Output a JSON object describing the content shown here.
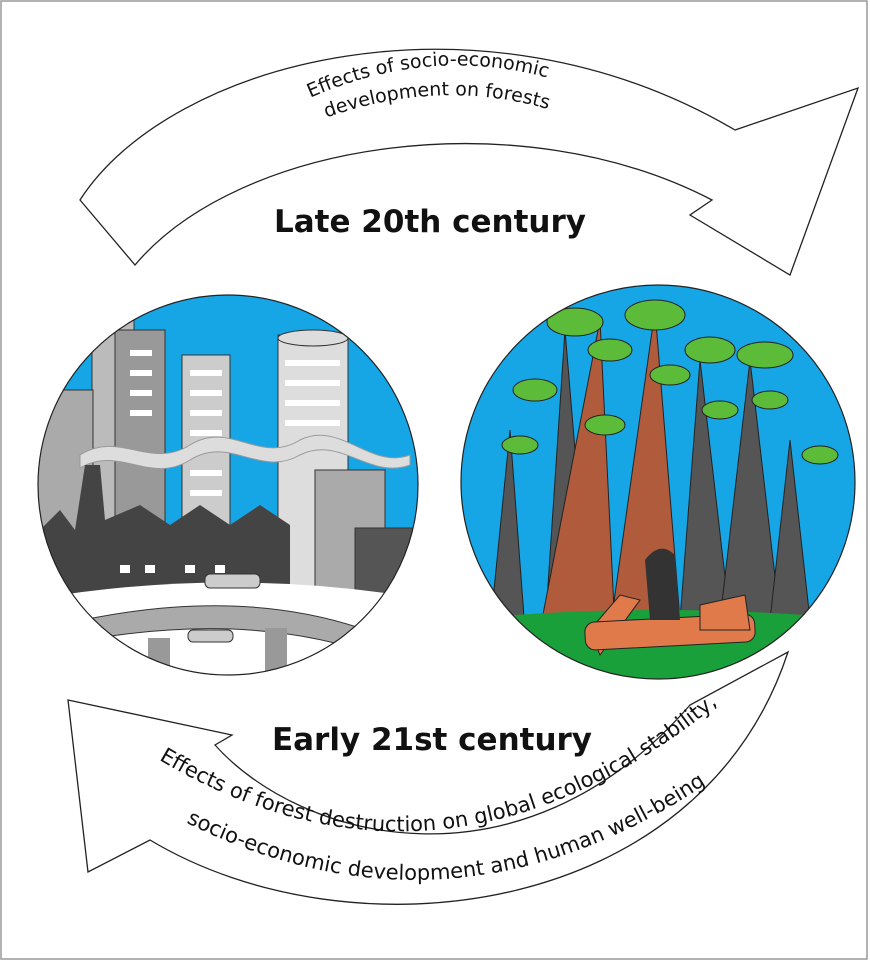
{
  "top_arrow": {
    "lines": [
      "Effects of socio-economic",
      "development on forests"
    ]
  },
  "late_label": "Late 20th century",
  "early_label": "Early 21st century",
  "bottom_arrow": {
    "lines": [
      "Effects of forest destruction on global ecological stability,",
      "socio-economic development and human well-being"
    ]
  }
}
